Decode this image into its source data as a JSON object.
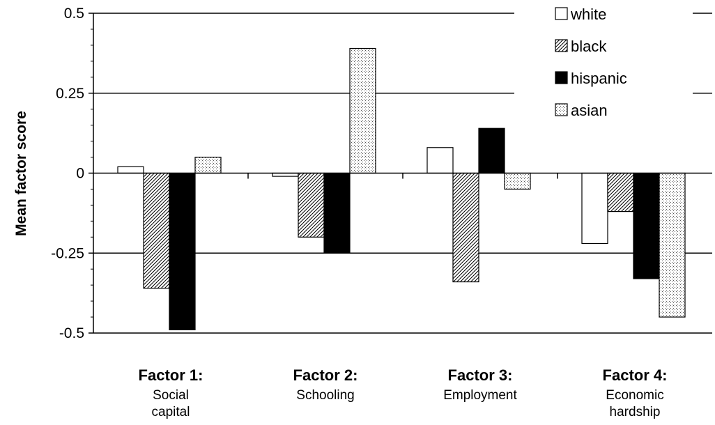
{
  "chart_data": {
    "type": "bar",
    "ylabel": "Mean factor score",
    "ylim": [
      -0.5,
      0.5
    ],
    "yticks": [
      0.5,
      0.25,
      0,
      -0.25,
      -0.5
    ],
    "ytick_labels": [
      "0.5",
      "0.25",
      "0",
      "-0.25",
      "-0.5"
    ],
    "grid": true,
    "legend_position": "top-right",
    "categories": [
      {
        "title": "Factor 1:",
        "subtitle": [
          "Social",
          "capital"
        ]
      },
      {
        "title": "Factor 2:",
        "subtitle": [
          "Schooling"
        ]
      },
      {
        "title": "Factor 3:",
        "subtitle": [
          "Employment"
        ]
      },
      {
        "title": "Factor 4:",
        "subtitle": [
          "Economic",
          "hardship"
        ]
      }
    ],
    "series": [
      {
        "name": "white",
        "fill": "white",
        "values": [
          0.02,
          -0.01,
          0.08,
          -0.22
        ]
      },
      {
        "name": "black",
        "fill": "hatch",
        "values": [
          -0.36,
          -0.2,
          -0.34,
          -0.12
        ]
      },
      {
        "name": "hispanic",
        "fill": "solid",
        "values": [
          -0.49,
          -0.25,
          0.14,
          -0.33
        ]
      },
      {
        "name": "asian",
        "fill": "dots",
        "values": [
          0.05,
          0.39,
          -0.05,
          -0.45
        ]
      }
    ]
  }
}
